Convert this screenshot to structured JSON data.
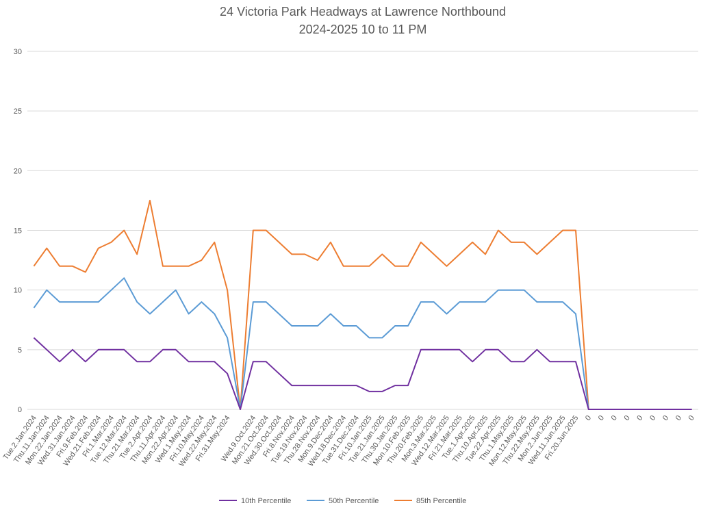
{
  "chart_data": {
    "type": "line",
    "title": "24 Victoria Park Headways at Lawrence Northbound",
    "subtitle": "2024-2025 10 to 11 PM",
    "categories": [
      "Tue.2.Jan.2024",
      "Thu.11.Jan.2024",
      "Mon.22.Jan.2024",
      "Wed.31.Jan.2024",
      "Fri.9.Feb.2024",
      "Wed.21.Feb.2024",
      "Fri.1.Mar.2024",
      "Tue.12.Mar.2024",
      "Thu.21.Mar.2024",
      "Tue.2.Apr.2024",
      "Thu.11.Apr.2024",
      "Mon.22.Apr.2024",
      "Wed.1.May.2024",
      "Fri.10.May.2024",
      "Wed.22.May.2024",
      "Fri.31.May.2024",
      null,
      "Wed.9.Oct.2024",
      "Mon.21.Oct.2024",
      "Wed.30.Oct.2024",
      "Fri.8.Nov.2024",
      "Tue.19.Nov.2024",
      "Thu.28.Nov.2024",
      "Mon.9.Dec.2024",
      "Wed.18.Dec.2024",
      "Tue.31.Dec.2024",
      "Fri.10.Jan.2025",
      "Tue.21.Jan.2025",
      "Thu.30.Jan.2025",
      "Mon.10.Feb.2025",
      "Thu.20.Feb.2025",
      "Mon.3.Mar.2025",
      "Wed.12.Mar.2025",
      "Fri.21.Mar.2025",
      "Tue.1.Apr.2025",
      "Thu.10.Apr.2025",
      "Tue.22.Apr.2025",
      "Thu.1.May.2025",
      "Mon.12.May.2025",
      "Thu.22.May.2025",
      "Mon.2.Jun.2025",
      "Wed.11.Jun.2025",
      "Fri.20.Jun.2025",
      "0",
      "0",
      "0",
      "0",
      "0",
      "0",
      "0",
      "0",
      "0"
    ],
    "series": [
      {
        "name": "10th Percentile",
        "color": "#7030a0",
        "values": [
          6,
          5,
          4,
          5,
          4,
          5,
          5,
          5,
          4,
          4,
          5,
          5,
          4,
          4,
          4,
          3,
          0,
          4,
          4,
          3,
          2,
          2,
          2,
          2,
          2,
          2,
          1.5,
          1.5,
          2,
          2,
          5,
          5,
          5,
          5,
          4,
          5,
          5,
          4,
          4,
          5,
          4,
          4,
          4,
          0,
          0,
          0,
          0,
          0,
          0,
          0,
          0,
          0
        ]
      },
      {
        "name": "50th Percentile",
        "color": "#5b9bd5",
        "values": [
          8.5,
          10,
          9,
          9,
          9,
          9,
          10,
          11,
          9,
          8,
          9,
          10,
          8,
          9,
          8,
          6,
          0,
          9,
          9,
          8,
          7,
          7,
          7,
          8,
          7,
          7,
          6,
          6,
          7,
          7,
          9,
          9,
          8,
          9,
          9,
          9,
          10,
          10,
          10,
          9,
          9,
          9,
          8,
          0,
          0,
          0,
          0,
          0,
          0,
          0,
          0,
          0
        ]
      },
      {
        "name": "85th Percentile",
        "color": "#ed7d31",
        "values": [
          12,
          13.5,
          12,
          12,
          11.5,
          13.5,
          14,
          15,
          13,
          17.5,
          12,
          12,
          12,
          12.5,
          14,
          10,
          0,
          15,
          15,
          14,
          13,
          13,
          12.5,
          14,
          12,
          12,
          12,
          13,
          12,
          12,
          14,
          13,
          12,
          13,
          14,
          13,
          15,
          14,
          14,
          13,
          14,
          15,
          15,
          0,
          0,
          0,
          0,
          0,
          0,
          0,
          0,
          0
        ]
      }
    ],
    "ylim": [
      0,
      30
    ],
    "yticks": [
      0,
      5,
      10,
      15,
      20,
      25,
      30
    ],
    "grid": true,
    "legend": "bottom"
  }
}
